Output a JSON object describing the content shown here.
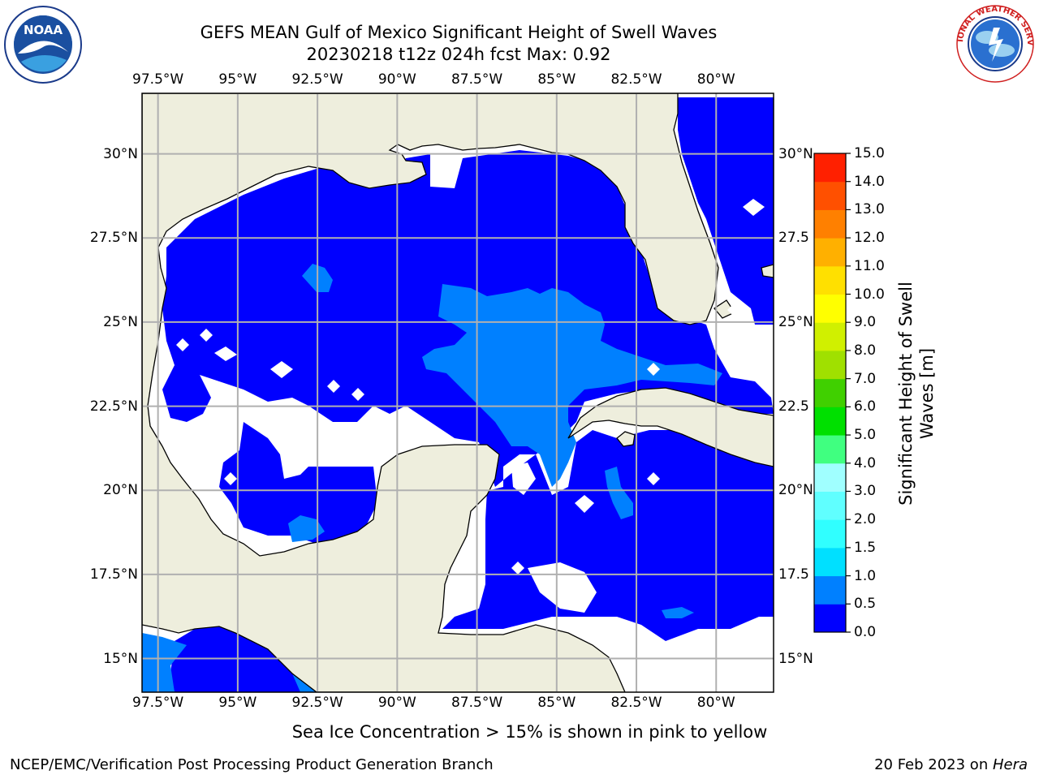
{
  "header": {
    "title_line1": "GEFS MEAN Gulf of Mexico Significant Height of Swell Waves",
    "title_line2": "20230218 t12z 024h fcst   Max: 0.92"
  },
  "logos": {
    "noaa": {
      "text": "NOAA",
      "ring_text": "NATIONAL OCEANIC AND ATMOSPHERIC ADMINISTRATION · U.S. DEPARTMENT OF COMMERCE"
    },
    "nws": {
      "ring_text": "NATIONAL WEATHER SERVICE"
    }
  },
  "map": {
    "lon_ticks": [
      "97.5°W",
      "95°W",
      "92.5°W",
      "90°W",
      "87.5°W",
      "85°W",
      "82.5°W",
      "80°W"
    ],
    "lat_ticks_left": [
      "30°N",
      "27.5°N",
      "25°N",
      "22.5°N",
      "20°N",
      "17.5°N",
      "15°N"
    ],
    "lat_ticks_right": [
      "30°N",
      "27.5",
      "25°N",
      "22.5",
      "20°N",
      "17.5",
      "15°N"
    ],
    "extent": {
      "lon": [
        -98,
        -78.2
      ],
      "lat": [
        14,
        31.8
      ]
    },
    "grid_lons": [
      -97.5,
      -95,
      -92.5,
      -90,
      -87.5,
      -85,
      -82.5,
      -80
    ],
    "grid_lats": [
      30,
      27.5,
      25,
      22.5,
      20,
      17.5,
      15
    ],
    "colors": {
      "land": "#eeeedd",
      "ocean_no_data": "#ffffff",
      "grid": "#b0b0b0"
    }
  },
  "colorbar": {
    "label_line1": "Significant Height of Swell",
    "label_line2": "Waves [m]",
    "ticks": [
      "0.0",
      "0.5",
      "1.0",
      "1.5",
      "2.0",
      "3.0",
      "4.0",
      "5.0",
      "6.0",
      "7.0",
      "8.0",
      "9.0",
      "10.0",
      "11.0",
      "12.0",
      "13.0",
      "14.0",
      "15.0"
    ],
    "colors": [
      "#0000ff",
      "#0080ff",
      "#00e0ff",
      "#30ffff",
      "#60ffff",
      "#a0ffff",
      "#40ff80",
      "#00e000",
      "#40d000",
      "#a0e000",
      "#d0f000",
      "#ffff00",
      "#ffe000",
      "#ffb000",
      "#ff8000",
      "#ff5000",
      "#ff2000",
      "#ff0000"
    ]
  },
  "caption": "Sea Ice Concentration > 15% is shown in pink to yellow",
  "footer": {
    "left": "NCEP/EMC/Verification Post Processing Product Generation Branch",
    "right_prefix": "20 Feb 2023 on ",
    "right_host": "Hera"
  }
}
